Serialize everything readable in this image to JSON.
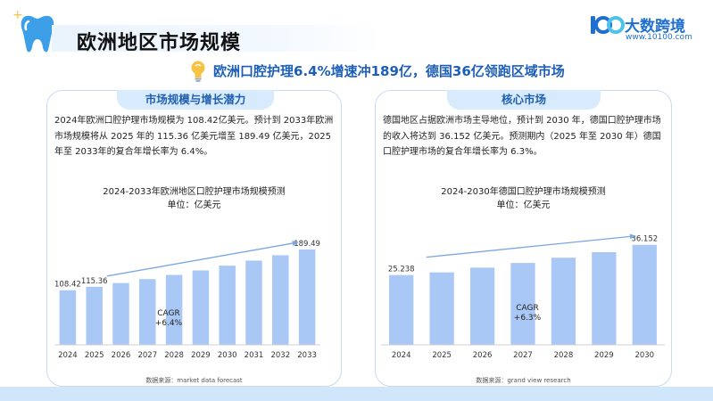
{
  "page": {
    "title": "欧洲地区市场规模",
    "headline": "欧洲口腔护理6.4%增速冲189亿，德国36亿领跑区域市场"
  },
  "logo": {
    "name": "大数跨境",
    "url": "www.10100.com"
  },
  "colors": {
    "bar": "#a9c8f5",
    "accent": "#1f6fd0",
    "arrow": "#7aa6e4",
    "tab_bg": "#d8ebfc"
  },
  "left_card": {
    "tab": "市场规模与增长潜力",
    "text": "2024年欧洲口腔护理市场规模为 108.42亿美元。预计到 2033年欧洲市场规模将从 2025 年的 115.36 亿美元增至 189.49 亿美元，2025 年至 2033年的复合年增长率为 6.4%。",
    "chart_title": "2024-2033年欧洲地区口腔护理市场规模预测",
    "chart_unit": "单位：亿美元",
    "cagr_line1": "CAGR",
    "cagr_line2": "+6.4%",
    "source": "数据来源：market data forecast"
  },
  "right_card": {
    "tab": "核心市场",
    "text": "德国地区占据欧洲市场主导地位，预计到 2030 年，德国口腔护理市场的收入将达到 36.152 亿美元。预测期内（2025 年至 2030 年）德国口腔护理市场的复合年增长率为 6.3%。",
    "chart_title": "2024-2030年德国口腔护理市场规模预测",
    "chart_unit": "单位：亿美元",
    "cagr_line1": "CAGR",
    "cagr_line2": "+6.3%",
    "source": "数据来源：grand view research"
  },
  "chart_data": [
    {
      "type": "bar",
      "title": "2024-2033年欧洲地区口腔护理市场规模预测",
      "unit": "单位：亿美元",
      "categories": [
        "2024",
        "2025",
        "2026",
        "2027",
        "2028",
        "2029",
        "2030",
        "2031",
        "2032",
        "2033"
      ],
      "values": [
        108.42,
        115.36,
        122.7,
        130.6,
        138.9,
        147.8,
        157.3,
        167.3,
        178.0,
        189.49
      ],
      "labels": [
        "108.42",
        "115.36",
        "",
        "",
        "",
        "",
        "",
        "",
        "",
        "189.49"
      ],
      "ylim": [
        0,
        200
      ],
      "grid": false,
      "annotation": "CAGR +6.4%"
    },
    {
      "type": "bar",
      "title": "2024-2030年德国口腔护理市场规模预测",
      "unit": "单位：亿美元",
      "categories": [
        "2024",
        "2025",
        "2026",
        "2027",
        "2028",
        "2029",
        "2030"
      ],
      "values": [
        25.238,
        26.2,
        27.9,
        29.6,
        31.5,
        33.5,
        36.152
      ],
      "labels": [
        "25.238",
        "",
        "",
        "",
        "",
        "",
        "36.152"
      ],
      "ylim": [
        0,
        38
      ],
      "grid": false,
      "annotation": "CAGR +6.3%"
    }
  ]
}
